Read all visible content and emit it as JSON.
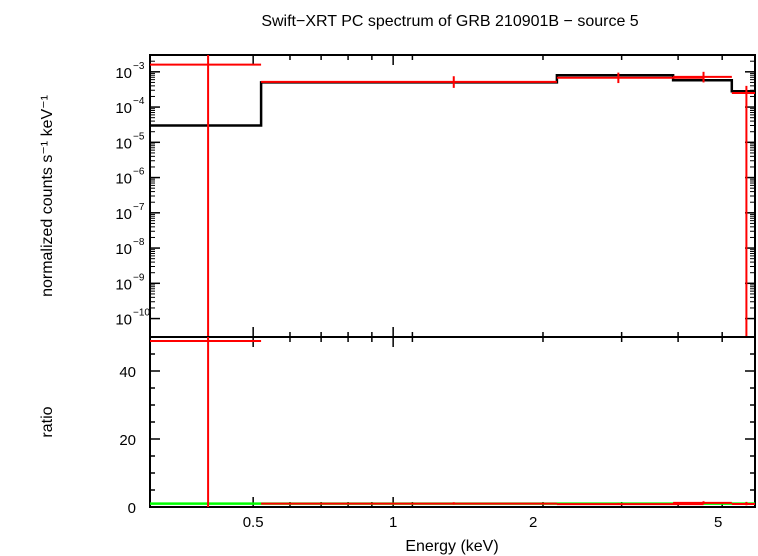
{
  "title": "Swift−XRT PC spectrum of GRB 210901B − source 5",
  "colors": {
    "data": "#ff0000",
    "model": "#000000",
    "ratio_line": "#00ff00",
    "axes": "#000000"
  },
  "chart_data": [
    {
      "type": "line",
      "panel": "top",
      "ylabel": "normalized counts s⁻¹ keV⁻¹",
      "xscale": "log",
      "yscale": "log",
      "xlim": [
        0.3,
        6.0
      ],
      "ylim": [
        3e-11,
        0.003
      ],
      "ytick_labels": [
        {
          "exp": -3,
          "text": "10",
          "sup": "−3"
        },
        {
          "exp": -4,
          "text": "10",
          "sup": "−4"
        },
        {
          "exp": -5,
          "text": "10",
          "sup": "−5"
        },
        {
          "exp": -6,
          "text": "10",
          "sup": "−6"
        },
        {
          "exp": -7,
          "text": "10",
          "sup": "−7"
        },
        {
          "exp": -8,
          "text": "10",
          "sup": "−8"
        },
        {
          "exp": -9,
          "text": "10",
          "sup": "−9"
        },
        {
          "exp": -10,
          "text": "10",
          "sup": "−10"
        }
      ],
      "series": [
        {
          "kind": "data",
          "points": [
            {
              "x": 0.4,
              "xlo": 0.3,
              "xhi": 0.52,
              "y": 0.0016,
              "ylo": 3e-11,
              "yhi": 0.003
            },
            {
              "x": 1.35,
              "xlo": 0.52,
              "xhi": 2.25,
              "y": 0.00052,
              "ylo": 0.00035,
              "yhi": 0.00075
            },
            {
              "x": 3.05,
              "xlo": 2.25,
              "xhi": 4.65,
              "y": 0.00068,
              "ylo": 0.00048,
              "yhi": 0.00095
            },
            {
              "x": 4.65,
              "xlo": 4.0,
              "xhi": 5.35,
              "y": 0.00072,
              "ylo": 0.0005,
              "yhi": 0.001
            },
            {
              "x": 5.75,
              "xlo": 5.35,
              "xhi": 6.0,
              "y": 0.00025,
              "ylo": 3e-11,
              "yhi": 0.0004
            }
          ]
        },
        {
          "kind": "model",
          "steps": [
            {
              "xlo": 0.3,
              "xhi": 0.52,
              "y": 3e-05
            },
            {
              "xlo": 0.52,
              "xhi": 2.25,
              "y": 0.0005
            },
            {
              "xlo": 2.25,
              "xhi": 4.0,
              "y": 0.0008
            },
            {
              "xlo": 4.0,
              "xhi": 5.35,
              "y": 0.00058
            },
            {
              "xlo": 5.35,
              "xhi": 6.0,
              "y": 0.00028
            }
          ]
        }
      ]
    },
    {
      "type": "line",
      "panel": "bottom",
      "xlabel": "Energy (keV)",
      "ylabel": "ratio",
      "xscale": "log",
      "xlim": [
        0.3,
        6.0
      ],
      "ylim": [
        0,
        50
      ],
      "yticks": [
        0,
        20,
        40
      ],
      "xticks": [
        {
          "value": 0.5,
          "label": "0.5"
        },
        {
          "value": 1,
          "label": "1"
        },
        {
          "value": 2,
          "label": "2"
        },
        {
          "value": 5,
          "label": "5"
        }
      ],
      "reference_line": 1,
      "series": [
        {
          "kind": "data",
          "points": [
            {
              "x": 0.4,
              "xlo": 0.3,
              "xhi": 0.52,
              "y": 50,
              "ylo": 0,
              "yhi": 50
            },
            {
              "x": 1.35,
              "xlo": 0.52,
              "xhi": 2.25,
              "y": 1.0,
              "ylo": 0.7,
              "yhi": 1.4
            },
            {
              "x": 3.05,
              "xlo": 2.25,
              "xhi": 4.65,
              "y": 0.85,
              "ylo": 0.6,
              "yhi": 1.2
            },
            {
              "x": 4.65,
              "xlo": 4.0,
              "xhi": 5.35,
              "y": 1.2,
              "ylo": 0.85,
              "yhi": 1.7
            },
            {
              "x": 5.75,
              "xlo": 5.35,
              "xhi": 6.0,
              "y": 0.9,
              "ylo": 0.5,
              "yhi": 1.5
            }
          ]
        }
      ]
    }
  ]
}
